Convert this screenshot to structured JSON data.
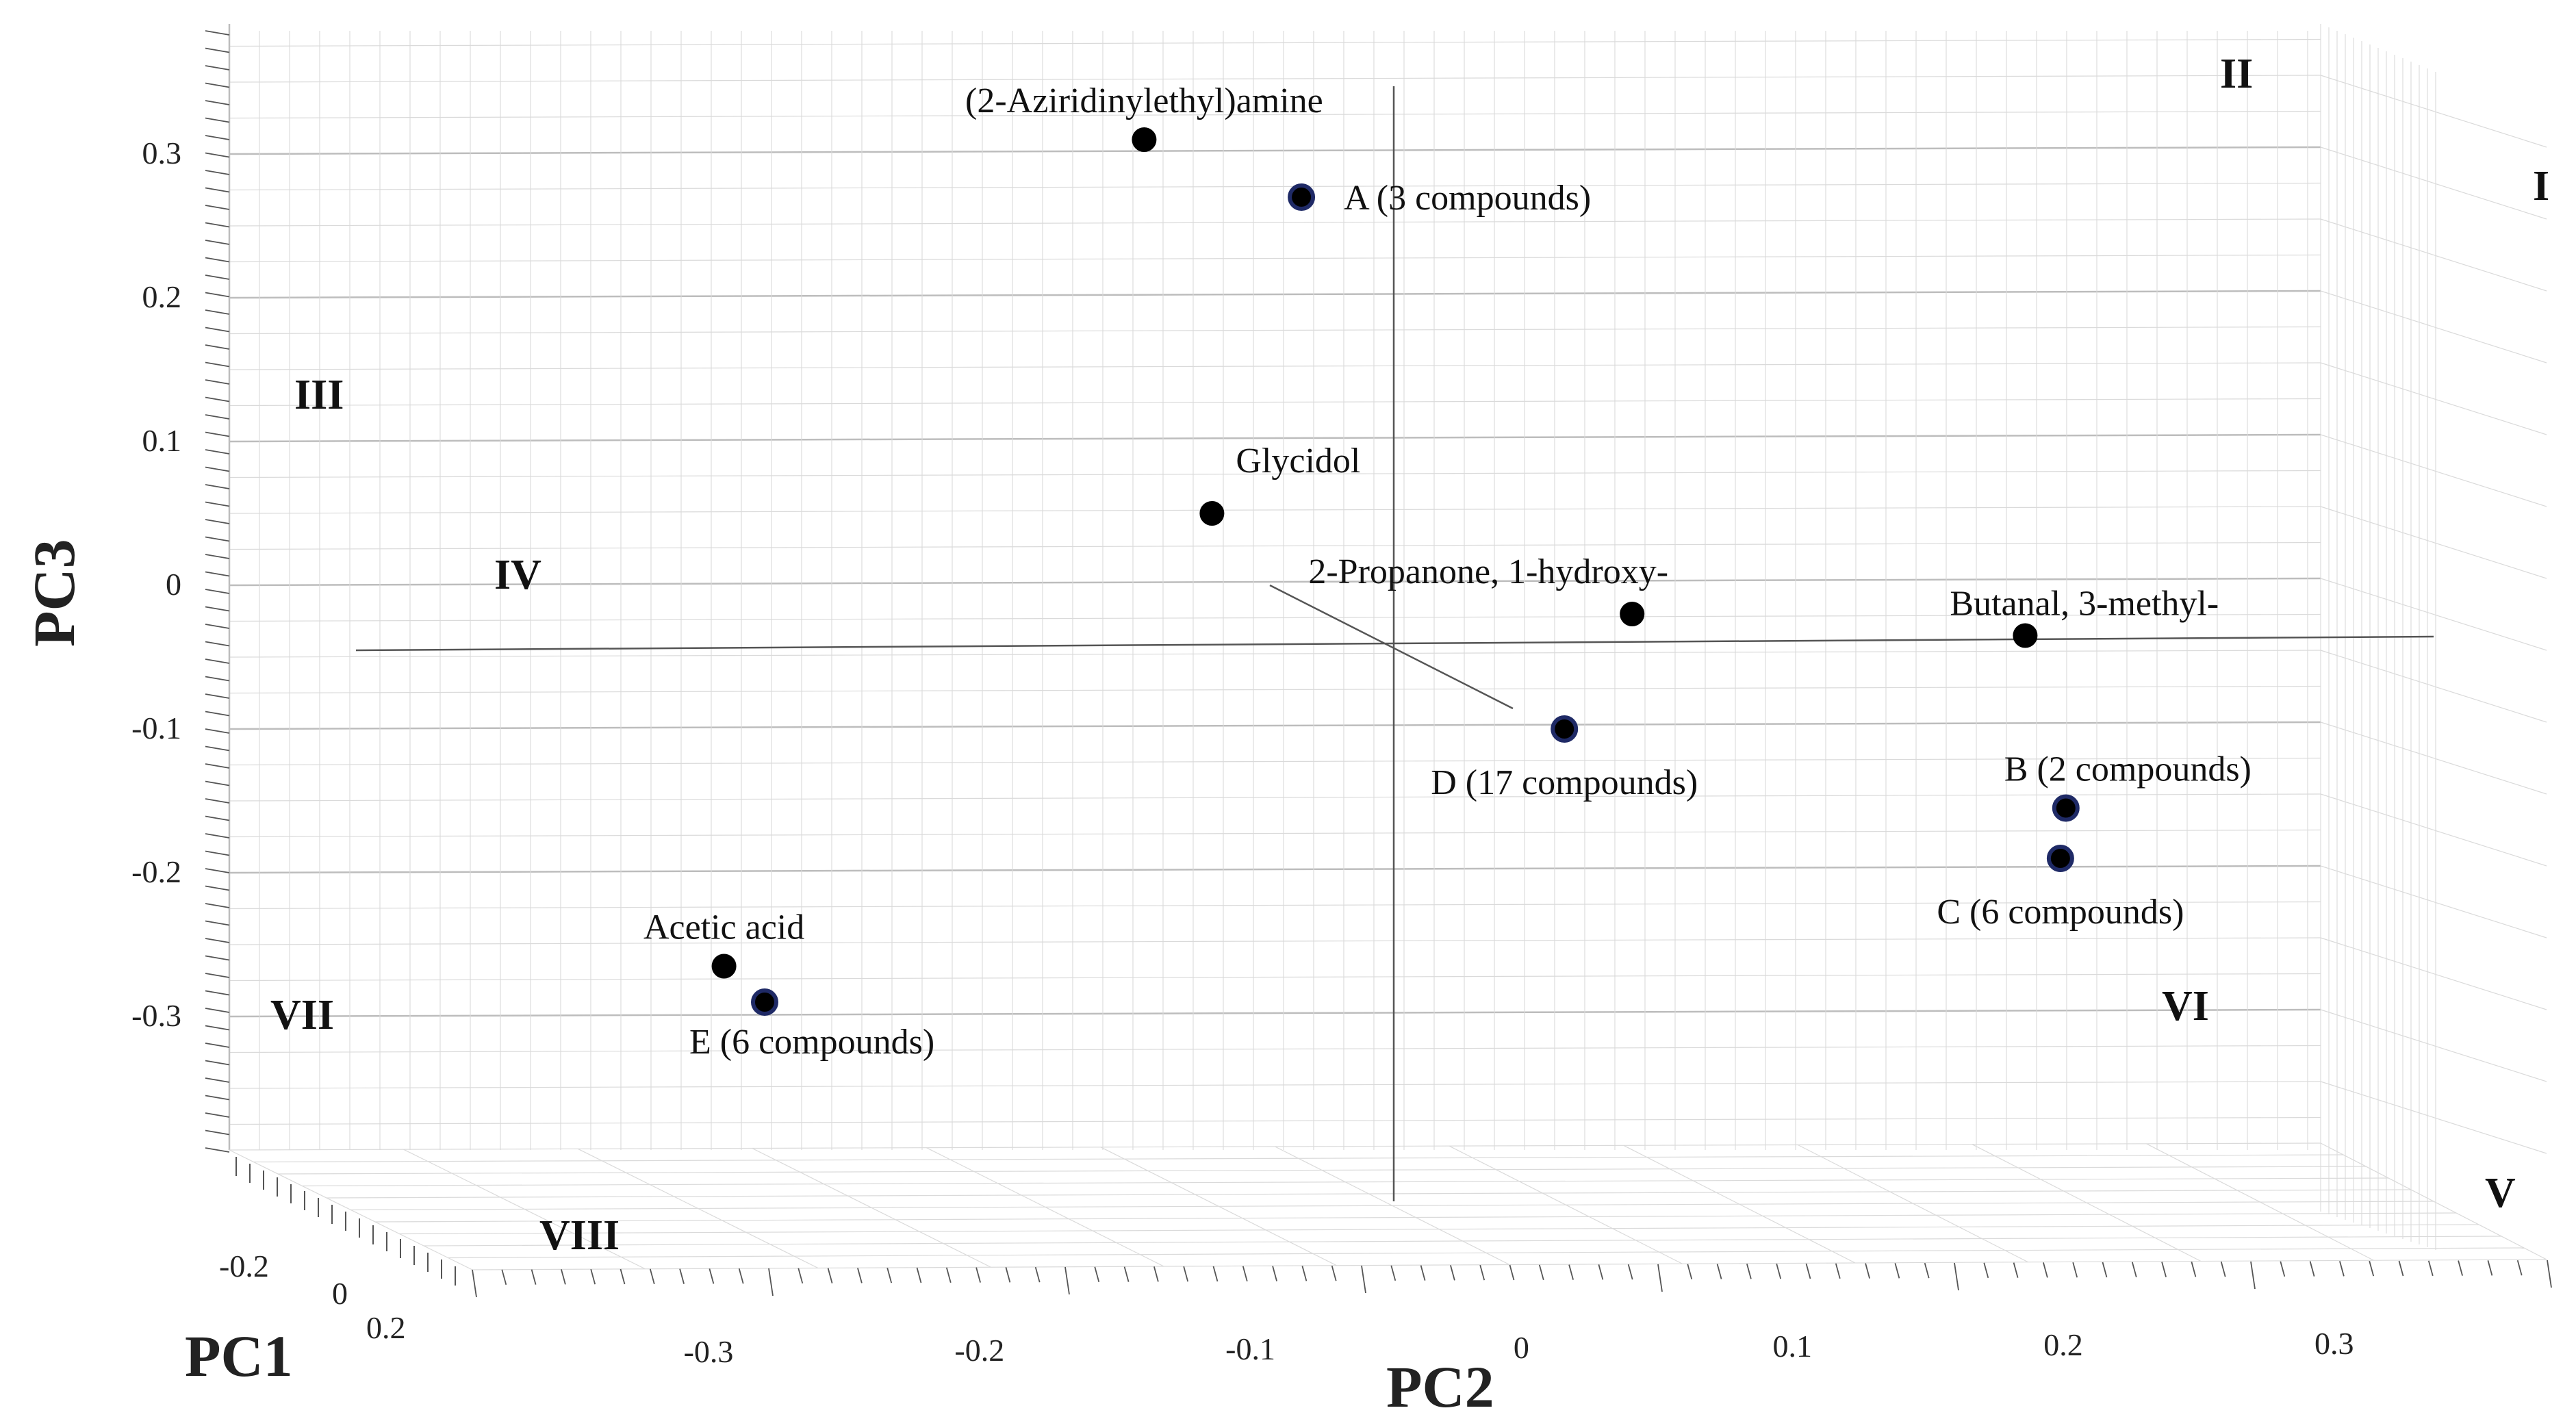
{
  "chart_data": {
    "type": "scatter3d",
    "title": "",
    "xlabel": "PC1",
    "ylabel": "PC2",
    "zlabel": "PC3",
    "pc1_ticks": [
      "-0.2",
      "0",
      "0.2"
    ],
    "pc2_ticks": [
      "-0.3",
      "-0.2",
      "-0.1",
      "0",
      "0.1",
      "0.2",
      "0.3"
    ],
    "pc3_ticks": [
      "0.3",
      "0.2",
      "0.1",
      "0",
      "-0.1",
      "-0.2",
      "-0.3"
    ],
    "pc2_tick_values": [
      -0.3,
      -0.2,
      -0.1,
      0,
      0.1,
      0.2,
      0.3
    ],
    "pc3_tick_values": [
      0.3,
      0.2,
      0.1,
      0,
      -0.1,
      -0.2,
      -0.3
    ],
    "pc2_range": [
      -0.39,
      0.35
    ],
    "pc3_range": [
      -0.38,
      0.37
    ],
    "grid": true,
    "octants": [
      {
        "label": "I",
        "region": "upper-right-back"
      },
      {
        "label": "II",
        "region": "upper-right-front"
      },
      {
        "label": "III",
        "region": "upper-left-back"
      },
      {
        "label": "IV",
        "region": "upper-left-front"
      },
      {
        "label": "V",
        "region": "lower-right-front"
      },
      {
        "label": "VI",
        "region": "lower-right-back"
      },
      {
        "label": "VII",
        "region": "lower-left-back"
      },
      {
        "label": "VIII",
        "region": "lower-left-front"
      }
    ],
    "points": [
      {
        "label": "(2-Aziridinylethyl)amine",
        "pc2": -0.135,
        "pc3": 0.31,
        "label_pos": "above",
        "cluster": false
      },
      {
        "label": "A (3 compounds)",
        "pc2": -0.077,
        "pc3": 0.27,
        "label_pos": "right",
        "cluster": true
      },
      {
        "label": "Glycidol",
        "pc2": -0.11,
        "pc3": 0.05,
        "label_pos": "above-right",
        "cluster": false
      },
      {
        "label": "2-Propanone, 1-hydroxy-",
        "pc2": 0.045,
        "pc3": -0.02,
        "label_pos": "above",
        "cluster": false
      },
      {
        "label": "Butanal, 3-methyl-",
        "pc2": 0.19,
        "pc3": -0.035,
        "label_pos": "above-right",
        "cluster": false
      },
      {
        "label": "D (17 compounds)",
        "pc2": 0.02,
        "pc3": -0.1,
        "label_pos": "below",
        "cluster": true
      },
      {
        "label": "B (2 compounds)",
        "pc2": 0.205,
        "pc3": -0.155,
        "label_pos": "above-right",
        "cluster": true
      },
      {
        "label": "C (6 compounds)",
        "pc2": 0.203,
        "pc3": -0.19,
        "label_pos": "below",
        "cluster": true
      },
      {
        "label": "Acetic acid",
        "pc2": -0.29,
        "pc3": -0.265,
        "label_pos": "above",
        "cluster": false
      },
      {
        "label": "E (6 compounds)",
        "pc2": -0.275,
        "pc3": -0.29,
        "label_pos": "below-right",
        "cluster": true
      }
    ],
    "colors": {
      "point_fill": "#000000",
      "cluster_ring": "#1f2a66",
      "grid_major": "#bdbdbd",
      "grid_minor": "#dadada",
      "axis_line": "#555555",
      "text": "#111111"
    }
  }
}
